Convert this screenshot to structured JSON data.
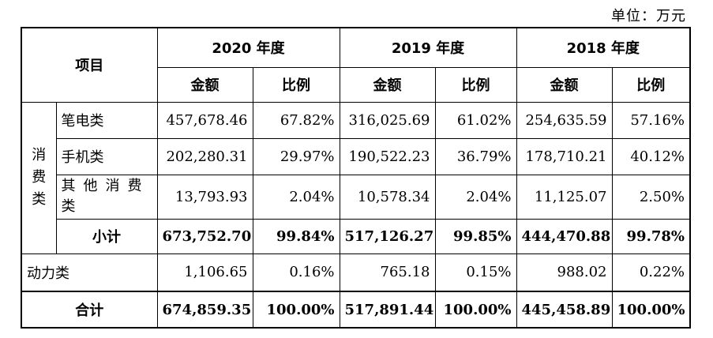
{
  "unit": "单位：万元",
  "header": {
    "item": "项目",
    "years": [
      "2020 年度",
      "2019 年度",
      "2018 年度"
    ],
    "amount": "金额",
    "ratio": "比例"
  },
  "group": {
    "label_chars": [
      "消",
      "费",
      "类"
    ],
    "rows": [
      {
        "name": "笔电类",
        "v2020": "457,678.46",
        "r2020": "67.82%",
        "v2019": "316,025.69",
        "r2019": "61.02%",
        "v2018": "254,635.59",
        "r2018": "57.16%"
      },
      {
        "name": "手机类",
        "v2020": "202,280.31",
        "r2020": "29.97%",
        "v2019": "190,522.23",
        "r2019": "36.79%",
        "v2018": "178,710.21",
        "r2018": "40.12%"
      },
      {
        "name": "其他消费类",
        "v2020": "13,793.93",
        "r2020": "2.04%",
        "v2019": "10,578.34",
        "r2019": "2.04%",
        "v2018": "11,125.07",
        "r2018": "2.50%"
      }
    ],
    "subtotal": {
      "name": "小计",
      "v2020": "673,752.70",
      "r2020": "99.84%",
      "v2019": "517,126.27",
      "r2019": "99.85%",
      "v2018": "444,470.88",
      "r2018": "99.78%"
    }
  },
  "power": {
    "name": "动力类",
    "v2020": "1,106.65",
    "r2020": "0.16%",
    "v2019": "765.18",
    "r2019": "0.15%",
    "v2018": "988.02",
    "r2018": "0.22%"
  },
  "total": {
    "name": "合计",
    "v2020": "674,859.35",
    "r2020": "100.00%",
    "v2019": "517,891.44",
    "r2019": "100.00%",
    "v2018": "445,458.89",
    "r2018": "100.00%"
  }
}
